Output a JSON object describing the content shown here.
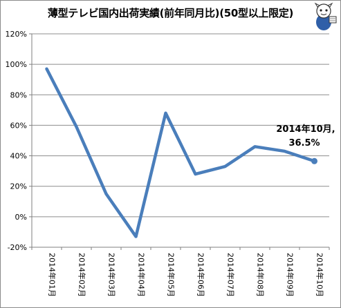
{
  "title": "薄型テレビ国内出荷実績(前年同月比)(50型以上限定)",
  "chart_data": {
    "type": "line",
    "title": "薄型テレビ国内出荷実績(前年同月比)(50型以上限定)",
    "categories": [
      "2014年01月",
      "2014年02月",
      "2014年03月",
      "2014年04月",
      "2014年05月",
      "2014年06月",
      "2014年07月",
      "2014年08月",
      "2014年09月",
      "2014年10月"
    ],
    "series": [
      {
        "values": [
          97,
          59,
          15,
          -13,
          68,
          28,
          33,
          46,
          43,
          36.5
        ]
      }
    ],
    "ylim": [
      -20,
      120
    ],
    "yticks": [
      -20,
      0,
      20,
      40,
      60,
      80,
      100,
      120
    ],
    "ytick_labels": [
      "-20%",
      "0%",
      "20%",
      "40%",
      "60%",
      "80%",
      "100%",
      "120%"
    ],
    "grid": "horizontal",
    "line_color": "#4a7ebb",
    "annotation": {
      "line1": "2014年10月,",
      "line2": "36.5%"
    }
  }
}
